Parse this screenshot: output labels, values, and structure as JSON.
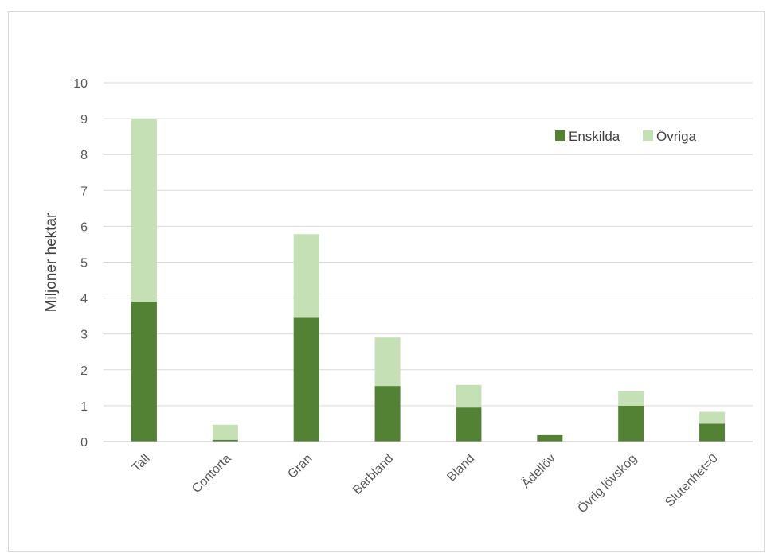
{
  "chart_data": {
    "type": "bar",
    "stacked": true,
    "title": "",
    "xlabel": "",
    "ylabel": "Miljoner hektar",
    "ylim": [
      0,
      10
    ],
    "yticks": [
      "0",
      "1",
      "2",
      "3",
      "4",
      "5",
      "6",
      "7",
      "8",
      "9",
      "10"
    ],
    "grid": true,
    "legend_position": "top-right",
    "categories": [
      "Tall",
      "Contorta",
      "Gran",
      "Barbland",
      "Bland",
      "Ädellöv",
      "Övrig lövskog",
      "Slutenhet=0"
    ],
    "series": [
      {
        "name": "Enskilda",
        "color": "#548235",
        "values": [
          3.9,
          0.05,
          3.45,
          1.55,
          0.95,
          0.18,
          1.0,
          0.5
        ]
      },
      {
        "name": "Övriga",
        "color": "#c5e0b4",
        "values": [
          5.1,
          0.42,
          2.33,
          1.35,
          0.63,
          0.0,
          0.4,
          0.33
        ]
      }
    ]
  }
}
